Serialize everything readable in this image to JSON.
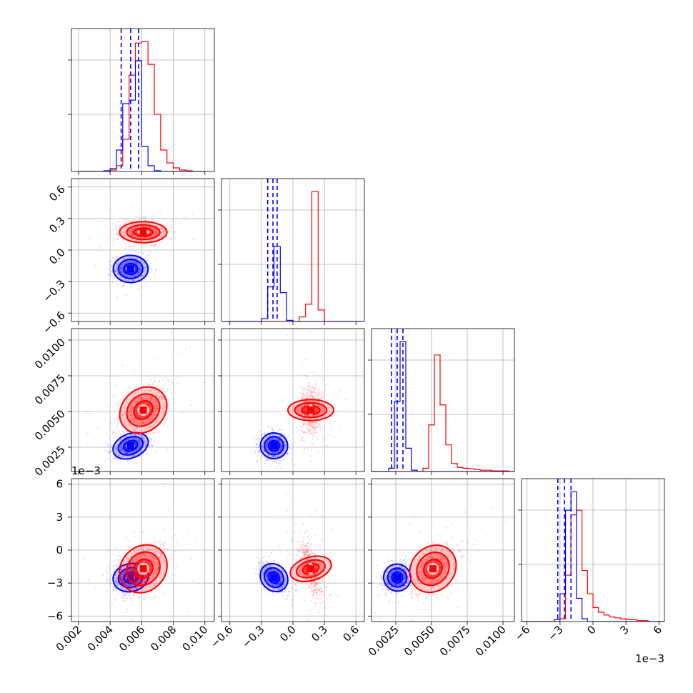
{
  "chart_data": {
    "type": "corner",
    "series": [
      {
        "name": "",
        "color": "#0000ff",
        "median": [
          0.0053,
          -0.18,
          0.0026,
          -0.0025
        ],
        "sd": [
          0.00055,
          0.065,
          0.00045,
          0.00065
        ],
        "corr_d2_d0": 0.3,
        "corr_d3_d0": 0.1,
        "corr_d3_d1": -0.5,
        "corr_d3_d2": 0.2
      },
      {
        "name": "",
        "color": "#ff0000",
        "median": [
          0.0061,
          0.17,
          0.0051,
          -0.0017
        ],
        "sd": [
          0.00075,
          0.05,
          0.0008,
          0.0011
        ],
        "corr_d2_d0": 0.4,
        "corr_d3_d0": 0.4,
        "corr_d3_d1": -0.6,
        "corr_d3_d2": 0.5
      }
    ],
    "quantile_lines_blue": [
      [
        0.0047,
        0.0053,
        0.0058
      ],
      [
        -0.24,
        -0.19,
        -0.15
      ],
      [
        0.0022,
        0.0026,
        0.003
      ],
      [
        -0.0032,
        -0.0026,
        -0.002
      ]
    ],
    "histograms": [
      {
        "edges": [
          0.002,
          0.0024,
          0.0028,
          0.0032,
          0.0036,
          0.004,
          0.0044,
          0.0048,
          0.0052,
          0.0056,
          0.006,
          0.0064,
          0.0068,
          0.0072,
          0.0076,
          0.008,
          0.0084,
          0.0088,
          0.0092,
          0.0096,
          0.01
        ],
        "blue": [
          0,
          0,
          0,
          0,
          1,
          4,
          30,
          95,
          100,
          155,
          35,
          8,
          1,
          0,
          0,
          0,
          0,
          0,
          0,
          0
        ],
        "red": [
          0,
          0,
          0,
          0,
          0,
          2,
          8,
          45,
          135,
          180,
          182,
          150,
          80,
          30,
          12,
          5,
          2,
          1,
          0,
          0
        ]
      },
      {
        "edges": [
          -0.66,
          -0.6,
          -0.54,
          -0.48,
          -0.42,
          -0.36,
          -0.3,
          -0.24,
          -0.18,
          -0.12,
          -0.06,
          0.0,
          0.06,
          0.12,
          0.18,
          0.24,
          0.3,
          0.36,
          0.42,
          0.48,
          0.54,
          0.6,
          0.66
        ],
        "blue": [
          0,
          0,
          0,
          0,
          0,
          0,
          5,
          60,
          130,
          50,
          2,
          0,
          0,
          0,
          0,
          0,
          0,
          0,
          0,
          0,
          0,
          0
        ],
        "red": [
          0,
          0,
          0,
          0,
          0,
          0,
          0,
          0,
          0,
          0,
          0,
          0,
          8,
          30,
          225,
          20,
          0,
          0,
          0,
          0,
          0,
          0
        ]
      },
      {
        "edges": [
          0.0008,
          0.0012,
          0.0016,
          0.002,
          0.0024,
          0.0028,
          0.0032,
          0.0036,
          0.004,
          0.0044,
          0.0048,
          0.0052,
          0.0056,
          0.006,
          0.0064,
          0.0068,
          0.0072,
          0.0076,
          0.008,
          0.0084,
          0.0088,
          0.0092,
          0.0096,
          0.01,
          0.0104,
          0.0108,
          0.0112
        ],
        "blue": [
          0,
          0,
          0,
          5,
          105,
          195,
          35,
          2,
          0,
          0,
          0,
          0,
          0,
          0,
          0,
          0,
          0,
          0,
          0,
          0,
          0,
          0,
          0,
          0,
          0,
          0
        ],
        "red": [
          0,
          0,
          0,
          0,
          0,
          0,
          0,
          0,
          0,
          5,
          70,
          175,
          100,
          40,
          12,
          6,
          5,
          4,
          3,
          2,
          2,
          1,
          1,
          1,
          0,
          0
        ]
      },
      {
        "edges": [
          -0.0065,
          -0.006,
          -0.0055,
          -0.005,
          -0.0045,
          -0.004,
          -0.0035,
          -0.003,
          -0.0025,
          -0.002,
          -0.0015,
          -0.001,
          -0.0005,
          0.0,
          0.0005,
          0.001,
          0.0015,
          0.002,
          0.0025,
          0.003,
          0.0035,
          0.004,
          0.0045,
          0.005,
          0.0055,
          0.006,
          0.0065
        ],
        "blue": [
          0,
          0,
          0,
          0,
          0,
          0,
          2,
          30,
          120,
          140,
          25,
          3,
          0,
          0,
          0,
          0,
          0,
          0,
          0,
          0,
          0,
          0,
          0,
          0,
          0,
          0
        ],
        "red": [
          0,
          0,
          0,
          0,
          0,
          0,
          0,
          3,
          50,
          115,
          120,
          55,
          30,
          15,
          10,
          7,
          5,
          4,
          3,
          2,
          2,
          1,
          1,
          0,
          0,
          0
        ]
      }
    ],
    "axes": [
      {
        "lim": [
          0.00155,
          0.0106
        ],
        "ticks": [
          0.002,
          0.004,
          0.006,
          0.008,
          0.01
        ],
        "tick_labels": [
          "0.002",
          "0.004",
          "0.006",
          "0.008",
          "0.010"
        ]
      },
      {
        "lim": [
          -0.68,
          0.68
        ],
        "ticks": [
          -0.6,
          -0.3,
          0.0,
          0.3,
          0.6
        ],
        "tick_labels": [
          "−0.6",
          "−0.3",
          "0.0",
          "0.3",
          "0.6"
        ]
      },
      {
        "lim": [
          0.0008,
          0.0108
        ],
        "ticks": [
          0.0025,
          0.005,
          0.0075,
          0.01
        ],
        "tick_labels": [
          "0.0025",
          "0.0050",
          "0.0075",
          "0.0100"
        ]
      },
      {
        "lim": [
          -0.0065,
          0.0065
        ],
        "ticks": [
          -0.006,
          -0.003,
          0.0,
          0.003,
          0.006
        ],
        "tick_labels": [
          "−6",
          "−3",
          "0",
          "3",
          "6"
        ],
        "offset_label": "1e−3"
      }
    ],
    "grid": true
  }
}
